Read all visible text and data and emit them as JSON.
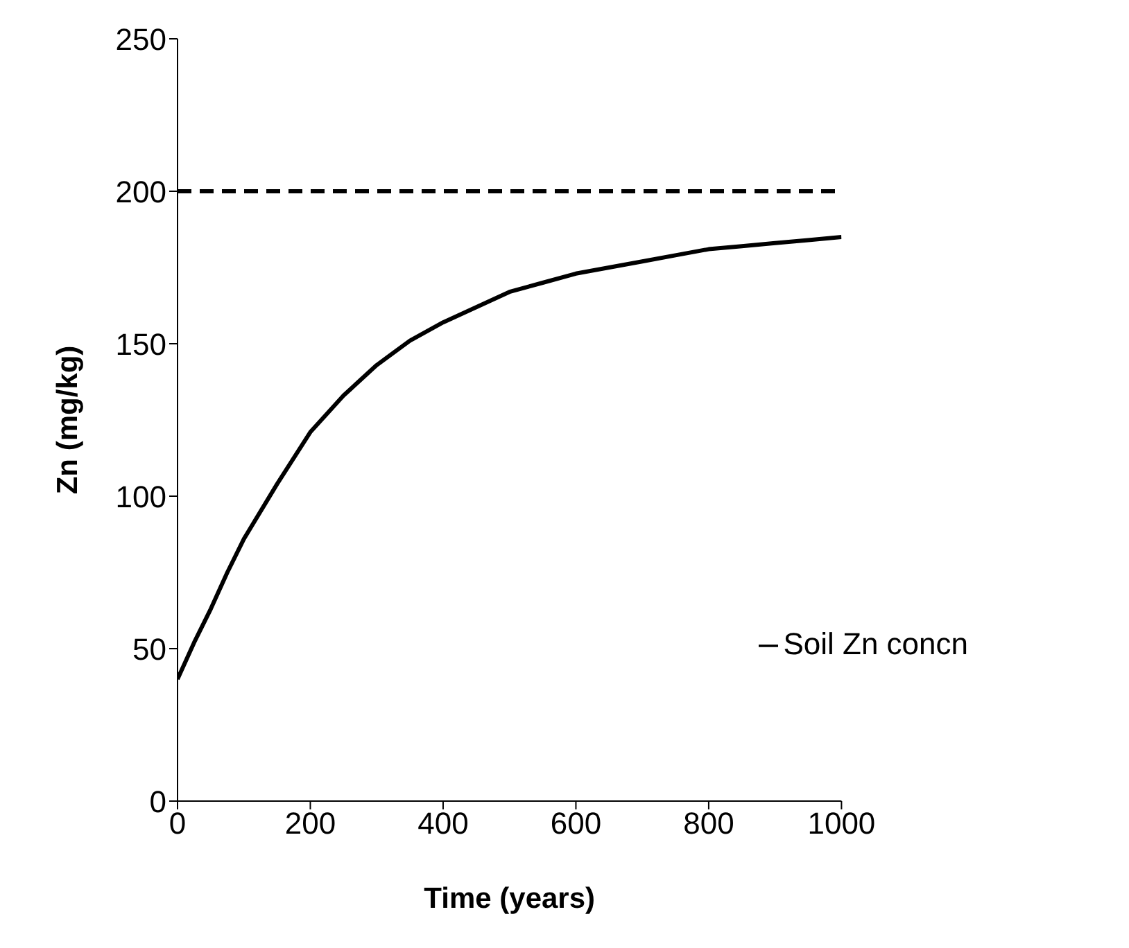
{
  "chart_data": {
    "type": "line",
    "xlabel": "Time (years)",
    "ylabel": "Zn (mg/kg)",
    "x": [
      0,
      25,
      50,
      75,
      100,
      150,
      200,
      250,
      300,
      350,
      400,
      450,
      500,
      550,
      600,
      650,
      700,
      750,
      800,
      850,
      900,
      950,
      1000
    ],
    "series": [
      {
        "name": "Soil Zn concn",
        "color": "#000000",
        "values": [
          40,
          52,
          63,
          75,
          86,
          104,
          121,
          133,
          143,
          151,
          157,
          162,
          167,
          170,
          173,
          175,
          177,
          179,
          181,
          182,
          183,
          184,
          185
        ]
      }
    ],
    "xlim": [
      0,
      1000
    ],
    "xticks": [
      0,
      200,
      400,
      600,
      800,
      1000
    ],
    "ylim": [
      0,
      250
    ],
    "yticks": [
      0,
      50,
      100,
      150,
      200,
      250
    ],
    "ref_lines": [
      {
        "axis": "y",
        "value": 200,
        "color": "#000000",
        "line_style": "dashed"
      }
    ],
    "grid": false,
    "legend": "bottom right",
    "marker": "none",
    "line_style": "solid"
  }
}
